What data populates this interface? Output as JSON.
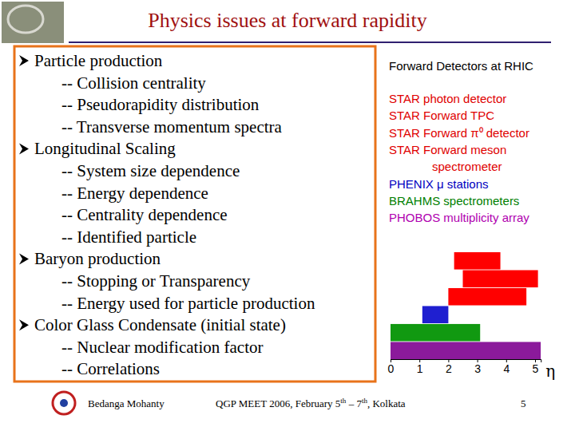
{
  "header": {
    "title": "Physics issues at forward rapidity"
  },
  "bullets": [
    {
      "text": "Particle production",
      "items": [
        "-- Collision centrality",
        "-- Pseudorapidity distribution",
        "-- Transverse momentum spectra"
      ]
    },
    {
      "text": "Longitudinal Scaling",
      "items": [
        "-- System size dependence",
        "-- Energy dependence",
        "-- Centrality dependence",
        "-- Identified particle"
      ]
    },
    {
      "text": "Baryon production",
      "items": [
        "-- Stopping or Transparency",
        "-- Energy used for particle production"
      ]
    },
    {
      "text": "Color Glass Condensate (initial state)",
      "items": [
        "-- Nuclear modification factor",
        "-- Correlations"
      ]
    }
  ],
  "detectors": {
    "title": "Forward Detectors at RHIC",
    "items": [
      {
        "lines": [
          "STAR photon detector"
        ],
        "color": "#e00000"
      },
      {
        "lines": [
          "STAR Forward TPC"
        ],
        "color": "#e00000"
      },
      {
        "lines": [
          "STAR Forward π⁰ detector"
        ],
        "color": "#e00000"
      },
      {
        "lines": [
          "STAR Forward meson",
          "spectrometer"
        ],
        "color": "#e00000"
      },
      {
        "lines": [
          "PHENIX μ stations"
        ],
        "color": "#0000c0"
      },
      {
        "lines": [
          "BRAHMS spectrometers"
        ],
        "color": "#008000"
      },
      {
        "lines": [
          "PHOBOS multiplicity array"
        ],
        "color": "#b000b0"
      }
    ]
  },
  "chart_data": {
    "type": "range_bar",
    "orientation": "horizontal",
    "categories": [
      null,
      null,
      null,
      null,
      null,
      null
    ],
    "x_start": [
      2.2,
      2.5,
      2.0,
      1.1,
      0,
      0
    ],
    "x_end": [
      3.8,
      5.1,
      4.7,
      2.0,
      3.1,
      5.2
    ],
    "colors": [
      "#ff0000",
      "#ff0000",
      "#ff0000",
      "#1f1fd0",
      "#119911",
      "#8b1a9b"
    ],
    "xlabel": "η",
    "xlim": [
      0,
      5.2
    ],
    "xticks": [
      0,
      1,
      2,
      3,
      4,
      5
    ],
    "tick_labels": "x"
  },
  "footer": {
    "author": "Bedanga Mohanty",
    "event": [
      {
        "text": "QGP MEET 2006, February 5"
      },
      {
        "text": "th",
        "sup": true
      },
      {
        "text": " – 7"
      },
      {
        "text": "th",
        "sup": true
      },
      {
        "text": ", Kolkata"
      }
    ],
    "page": "5"
  }
}
